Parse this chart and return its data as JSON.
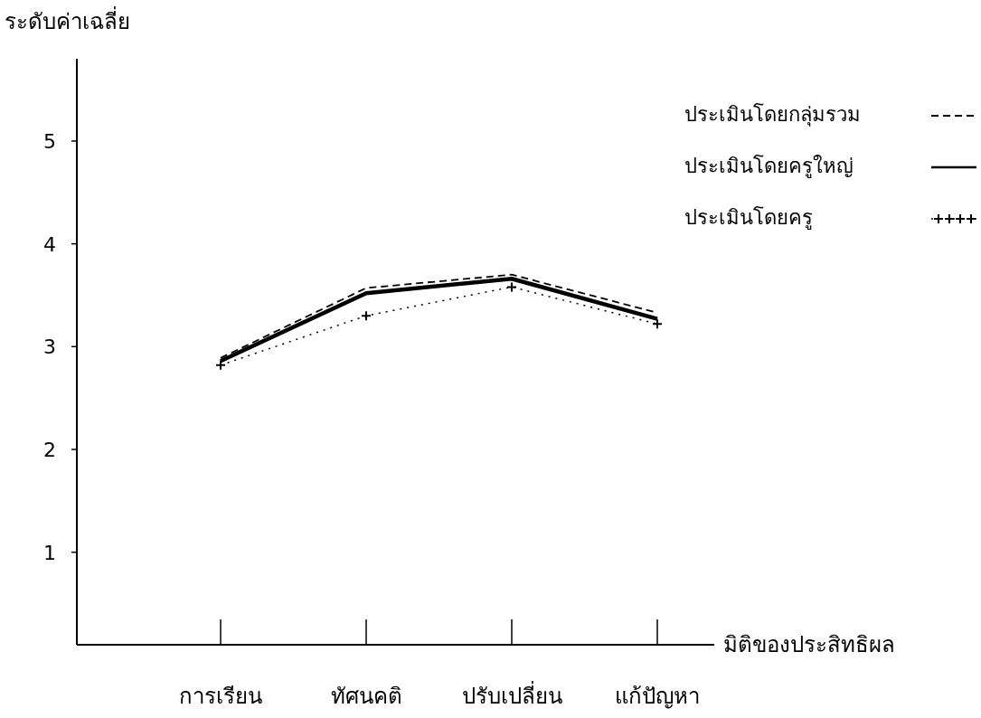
{
  "chart_data": {
    "type": "line",
    "ylabel": "ระดับค่าเฉลี่ย",
    "xlabel": "มิติของประสิทธิผล",
    "categories": [
      "การเรียน",
      "ทัศนคติ",
      "ปรับเปลี่ยน",
      "แก้ปัญหา"
    ],
    "series": [
      {
        "name": "ประเมินโดยกลุ่มรวม",
        "color": "#000000",
        "line_style": "dashed",
        "values": [
          2.89,
          3.57,
          3.7,
          3.33
        ]
      },
      {
        "name": "ประเมินโดยครูใหญ่",
        "color": "#000000",
        "line_style": "solid",
        "values": [
          2.86,
          3.52,
          3.66,
          3.27
        ]
      },
      {
        "name": "ประเมินโดยครู",
        "color": "#000000",
        "line_style": "dotted",
        "marker": "cross",
        "values": [
          2.82,
          3.3,
          3.58,
          3.22
        ]
      }
    ],
    "ylim": [
      0.1,
      5.8
    ],
    "yticks": [
      1,
      2,
      3,
      4,
      5
    ],
    "grid": false,
    "legend": "top right"
  }
}
